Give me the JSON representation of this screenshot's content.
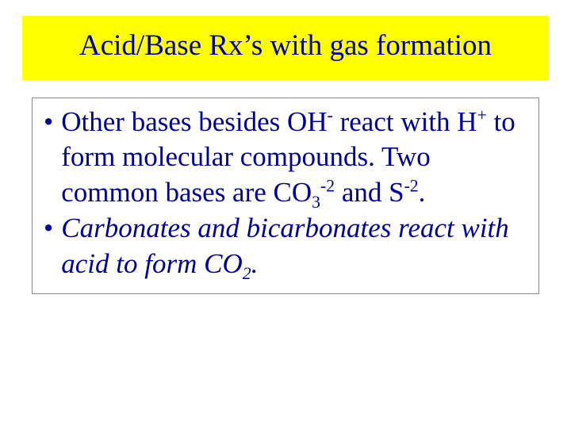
{
  "colors": {
    "title_bg": "#ffff00",
    "text": "#000099",
    "page_bg": "#ffffff",
    "body_border": "#888888"
  },
  "typography": {
    "family": "Times New Roman",
    "title_fontsize_pt": 28,
    "body_fontsize_pt": 26,
    "bullet2_italic": true
  },
  "title": "Acid/Base Rx’s with gas formation",
  "bullets": [
    {
      "style": "normal",
      "segments": [
        {
          "t": "Other bases besides OH"
        },
        {
          "t": "-",
          "sup": true
        },
        {
          "t": " react with H"
        },
        {
          "t": "+",
          "sup": true
        },
        {
          "t": " to form molecular compounds. Two common bases are CO"
        },
        {
          "t": "3",
          "sub": true
        },
        {
          "t": "-2",
          "sup": true
        },
        {
          "t": " and S"
        },
        {
          "t": "-2",
          "sup": true
        },
        {
          "t": "."
        }
      ]
    },
    {
      "style": "italic",
      "segments": [
        {
          "t": "Carbonates and bicarbonates react with acid to form CO"
        },
        {
          "t": "2",
          "sub": true
        },
        {
          "t": "."
        }
      ]
    }
  ]
}
